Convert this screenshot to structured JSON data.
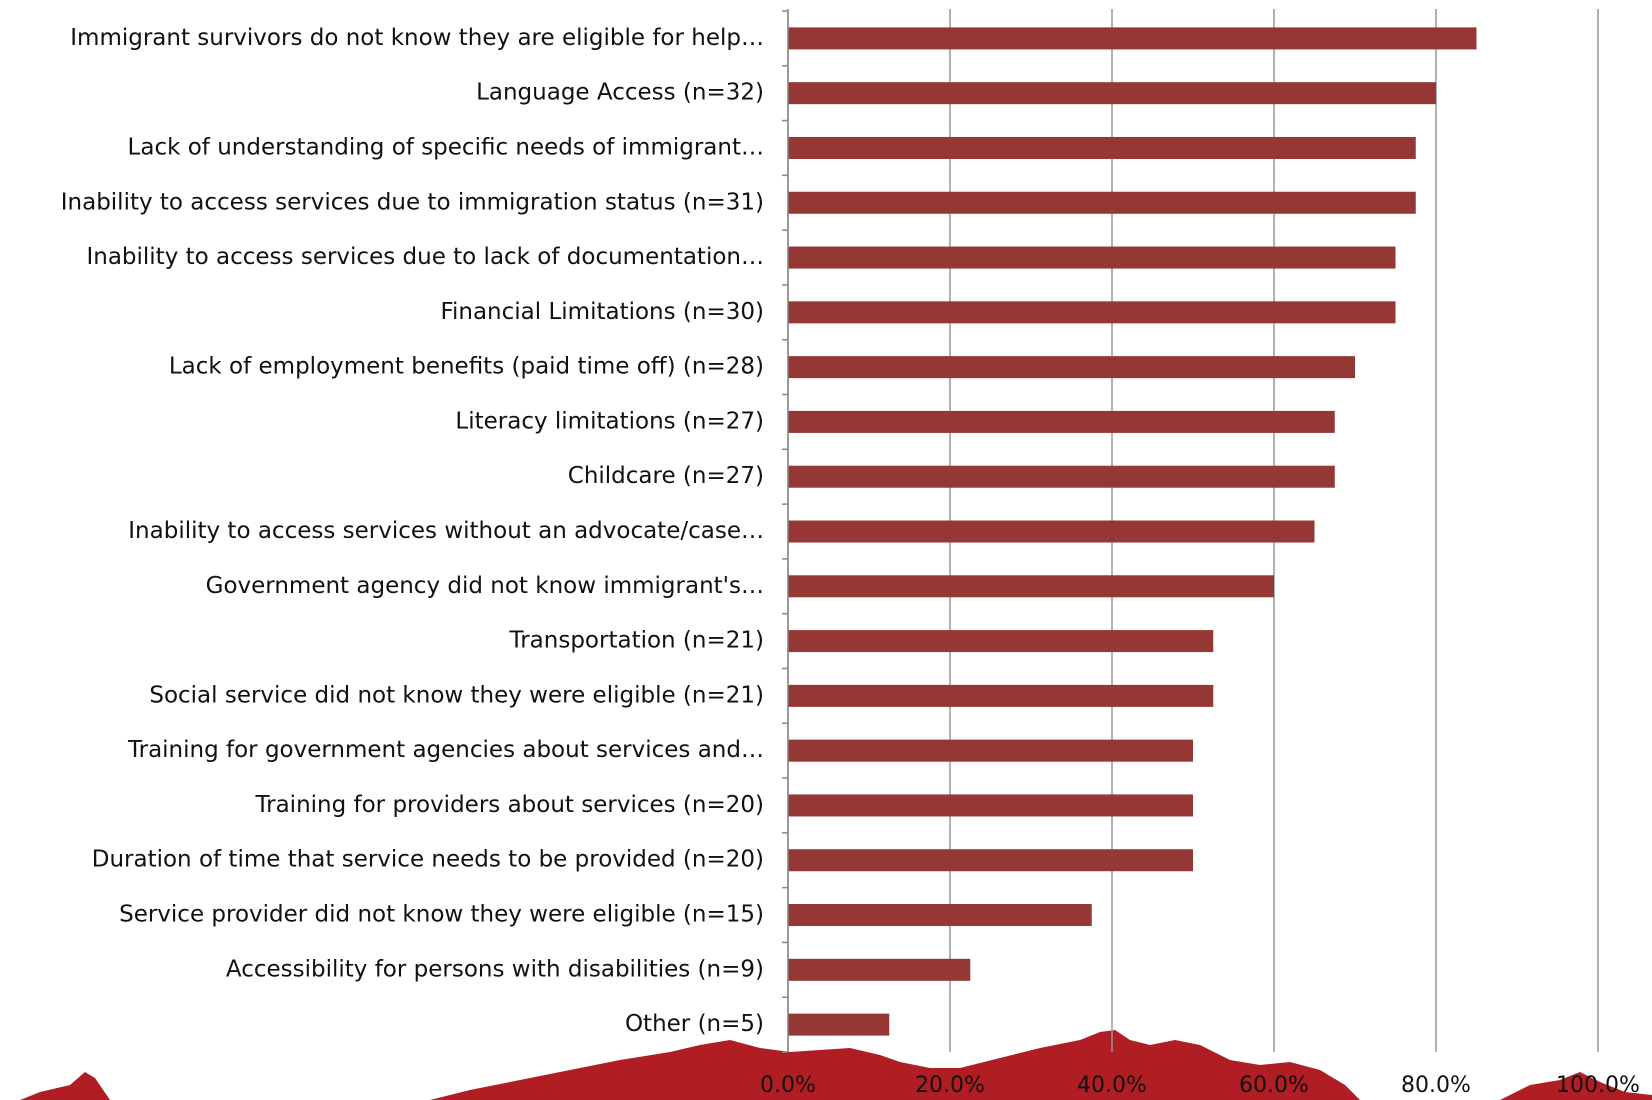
{
  "chart_data": {
    "type": "barh",
    "categories": [
      "Immigrant survivors do not know they are eligible for help…",
      "Language Access (n=32)",
      "Lack of understanding of specific needs of immigrant…",
      "Inability to access services due to immigration status (n=31)",
      "Inability to access services due to lack of documentation…",
      "Financial Limitations (n=30)",
      "Lack of employment benefits (paid time off) (n=28)",
      "Literacy limitations (n=27)",
      "Childcare (n=27)",
      "Inability to access services without an advocate/case…",
      "Government agency did not know immigrant's…",
      "Transportation (n=21)",
      "Social service did not know they were eligible (n=21)",
      "Training for government agencies about services and…",
      "Training for providers about services (n=20)",
      "Duration of time that service needs to be provided (n=20)",
      "Service provider did not know they were eligible (n=15)",
      "Accessibility for persons with disabilities (n=9)",
      "Other (n=5)"
    ],
    "values": [
      85,
      80,
      77.5,
      77.5,
      75,
      75,
      70,
      67.5,
      67.5,
      65,
      60,
      52.5,
      52.5,
      50,
      50,
      50,
      37.5,
      22.5,
      12.5
    ],
    "color": "#953735",
    "xlim": [
      0,
      100
    ],
    "xticks": [
      {
        "value": 0,
        "label": "0.0%"
      },
      {
        "value": 20,
        "label": "20.0%"
      },
      {
        "value": 40,
        "label": "40.0%"
      },
      {
        "value": 60,
        "label": "60.0%"
      },
      {
        "value": 80,
        "label": "80.0%"
      },
      {
        "value": 100,
        "label": "100.0%"
      }
    ],
    "grid": true
  }
}
